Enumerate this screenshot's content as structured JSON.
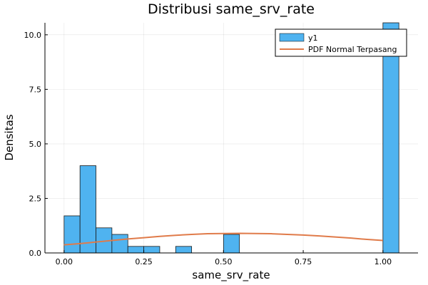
{
  "chart_data": {
    "type": "bar",
    "title": "Distribusi same_srv_rate",
    "xlabel": "same_srv_rate",
    "ylabel": "Densitas",
    "xlim": [
      -0.06,
      1.11
    ],
    "ylim": [
      0,
      10.55
    ],
    "grid": true,
    "legend_position": "top-right",
    "x_ticks": [
      {
        "value": 0,
        "label": "0.00"
      },
      {
        "value": 0.25,
        "label": "0.25"
      },
      {
        "value": 0.5,
        "label": "0.50"
      },
      {
        "value": 0.75,
        "label": "0.75"
      },
      {
        "value": 1,
        "label": "1.00"
      }
    ],
    "y_ticks": [
      {
        "value": 0,
        "label": "0.0"
      },
      {
        "value": 2.5,
        "label": "2.5"
      },
      {
        "value": 5,
        "label": "5.0"
      },
      {
        "value": 7.5,
        "label": "7.5"
      },
      {
        "value": 10,
        "label": "10.0"
      }
    ],
    "histogram": {
      "name": "y1",
      "color": "#4fb3f0",
      "bins": [
        {
          "x0": 0.0,
          "x1": 0.05,
          "value": 1.7
        },
        {
          "x0": 0.05,
          "x1": 0.1,
          "value": 4.0
        },
        {
          "x0": 0.1,
          "x1": 0.15,
          "value": 1.15
        },
        {
          "x0": 0.15,
          "x1": 0.2,
          "value": 0.85
        },
        {
          "x0": 0.2,
          "x1": 0.25,
          "value": 0.3
        },
        {
          "x0": 0.25,
          "x1": 0.3,
          "value": 0.3
        },
        {
          "x0": 0.35,
          "x1": 0.4,
          "value": 0.3
        },
        {
          "x0": 0.5,
          "x1": 0.55,
          "value": 0.85
        },
        {
          "x0": 1.0,
          "x1": 1.05,
          "value": 10.55
        }
      ]
    },
    "curve": {
      "name": "PDF Normal Terpasang",
      "color": "#e07b4a",
      "x": [
        0.0,
        0.05,
        0.1,
        0.15,
        0.2,
        0.25,
        0.3,
        0.35,
        0.4,
        0.45,
        0.5,
        0.55,
        0.6,
        0.65,
        0.7,
        0.75,
        0.8,
        0.85,
        0.9,
        0.95,
        1.0
      ],
      "y": [
        0.37,
        0.43,
        0.5,
        0.57,
        0.64,
        0.7,
        0.76,
        0.81,
        0.85,
        0.88,
        0.89,
        0.9,
        0.89,
        0.88,
        0.85,
        0.82,
        0.78,
        0.73,
        0.68,
        0.62,
        0.57
      ]
    }
  }
}
